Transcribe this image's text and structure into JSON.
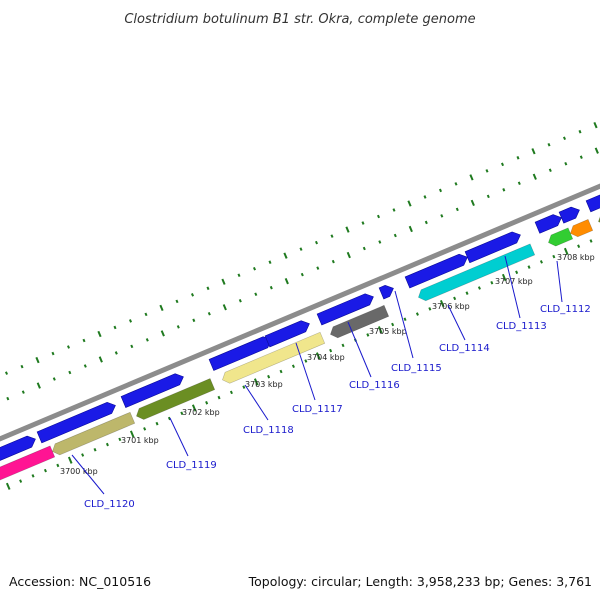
{
  "title": "Clostridium botulinum B1 str. Okra, complete genome",
  "footer": {
    "accession": "Accession: NC_010516",
    "summary": "Topology: circular; Length: 3,958,233 bp; Genes: 3,761"
  },
  "colors": {
    "backbone": "#8c8c8c",
    "forward_cds": "#1a1ae6",
    "tick_green": "#1f7a1f",
    "gene_label": "#1a1acc"
  },
  "kbp_ticks": [
    {
      "label": "3700 kbp"
    },
    {
      "label": "3701 kbp"
    },
    {
      "label": "3702 kbp"
    },
    {
      "label": "3703 kbp"
    },
    {
      "label": "3704 kbp"
    },
    {
      "label": "3705 kbp"
    },
    {
      "label": "3706 kbp"
    },
    {
      "label": "3707 kbp"
    },
    {
      "label": "3708 kbp"
    }
  ],
  "gene_labels": [
    {
      "label": "CLD_1120"
    },
    {
      "label": "CLD_1119"
    },
    {
      "label": "CLD_1118"
    },
    {
      "label": "CLD_1117"
    },
    {
      "label": "CLD_1116"
    },
    {
      "label": "CLD_1115"
    },
    {
      "label": "CLD_1114"
    },
    {
      "label": "CLD_1113"
    },
    {
      "label": "CLD_1112"
    }
  ],
  "reverse_features": [
    {
      "color": "#ff1493"
    },
    {
      "color": "#bdb76b"
    },
    {
      "color": "#6b8e23"
    },
    {
      "color": "#f0e68c"
    },
    {
      "color": "#696969"
    },
    {
      "color": "#00ced1"
    },
    {
      "color": "#32cd32"
    },
    {
      "color": "#ff8c00"
    },
    {
      "color": "#6b8e23"
    }
  ]
}
